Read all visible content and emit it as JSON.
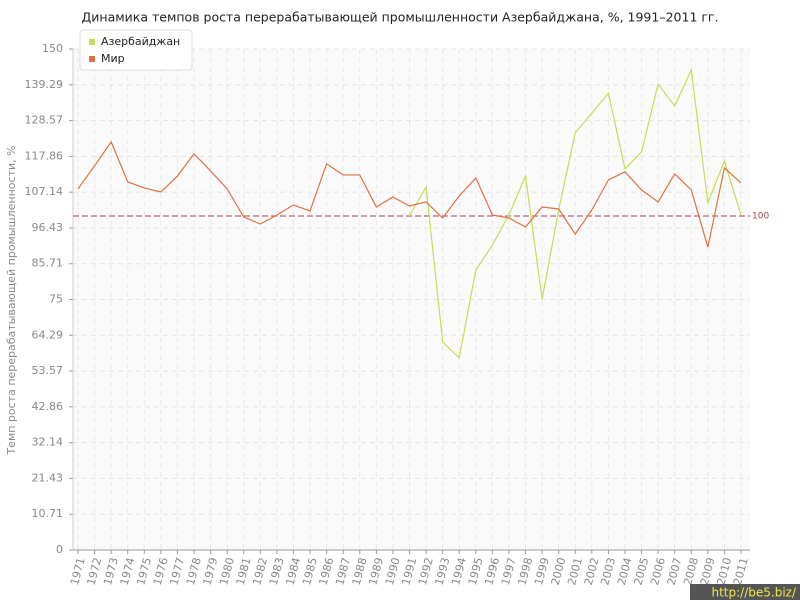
{
  "chart_data": {
    "type": "line",
    "title": "Динамика темпов роста перерабатывающей промышленности Азербайджана, %, 1991–2011 гг.",
    "y_label": "Темп роста перерабатывающей промышленности, %",
    "x": [
      1971,
      1972,
      1973,
      1974,
      1975,
      1976,
      1977,
      1978,
      1979,
      1980,
      1981,
      1982,
      1983,
      1984,
      1985,
      1986,
      1987,
      1988,
      1989,
      1990,
      1991,
      1992,
      1993,
      1994,
      1995,
      1996,
      1997,
      1998,
      1999,
      2000,
      2001,
      2002,
      2003,
      2004,
      2005,
      2006,
      2007,
      2008,
      2009,
      2010,
      2011
    ],
    "series": [
      {
        "name": "Азербайджан",
        "color": "#c2df55",
        "values": [
          null,
          null,
          null,
          null,
          null,
          null,
          null,
          null,
          null,
          null,
          null,
          null,
          null,
          null,
          null,
          null,
          null,
          null,
          null,
          null,
          100,
          108.7,
          62.3,
          57.5,
          83.8,
          91.3,
          100.3,
          112,
          75.1,
          101.8,
          124.9,
          130.8,
          136.8,
          114.1,
          119.2,
          139.5,
          132.9,
          143.7,
          103.9,
          116.5,
          100.3
        ]
      },
      {
        "name": "Мир",
        "color": "#e07040",
        "values": [
          108.1,
          115,
          122.2,
          110.2,
          108.4,
          107.2,
          112,
          118.6,
          113.5,
          108.1,
          99.7,
          97.6,
          100.3,
          103.3,
          101.5,
          115.6,
          112.3,
          112.3,
          102.7,
          105.7,
          103,
          104.2,
          99.4,
          106,
          111.4,
          100.3,
          99.4,
          96.7,
          102.7,
          102.1,
          94.6,
          101.8,
          110.8,
          113.2,
          107.8,
          104.2,
          112.6,
          107.8,
          90.7,
          114.4,
          109.9
        ]
      }
    ],
    "ylim": [
      0,
      150
    ],
    "yticks": [
      0,
      10.71,
      21.43,
      32.14,
      42.86,
      53.57,
      64.29,
      75,
      85.71,
      96.43,
      107.14,
      117.86,
      128.57,
      139.29,
      150
    ],
    "grid": true,
    "hline": 100,
    "hline_color": "#b04050",
    "legend": "top-left",
    "watermark": "http://be5.biz/"
  }
}
